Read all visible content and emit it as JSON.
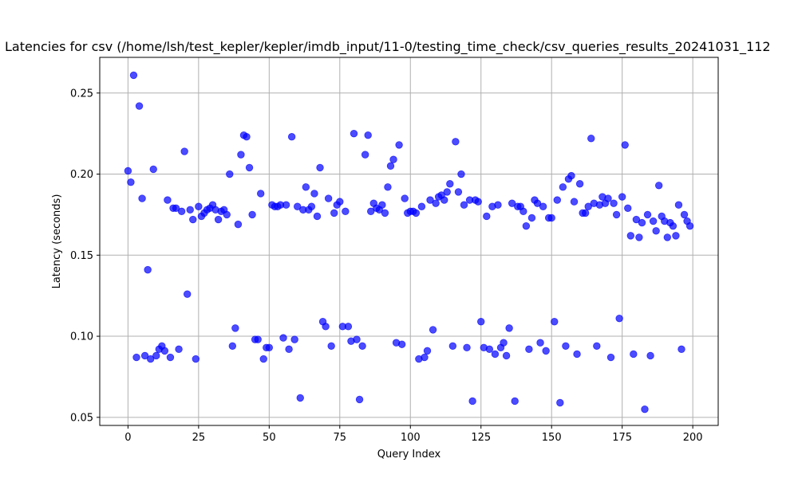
{
  "chart_data": {
    "type": "scatter",
    "title": "Latencies for csv (/home/lsh/test_kepler/kepler/imdb_input/11-0/testing_time_check/csv_queries_results_20241031_112",
    "xlabel": "Query Index",
    "ylabel": "Latency (seconds)",
    "xlim": [
      -10,
      209
    ],
    "ylim": [
      0.045,
      0.272
    ],
    "xticks": [
      0,
      25,
      50,
      75,
      100,
      125,
      150,
      175,
      200
    ],
    "yticks": [
      0.05,
      0.1,
      0.15,
      0.2,
      0.25
    ],
    "xtick_labels": [
      "0",
      "25",
      "50",
      "75",
      "100",
      "125",
      "150",
      "175",
      "200"
    ],
    "ytick_labels": [
      "0.05",
      "0.10",
      "0.15",
      "0.20",
      "0.25"
    ],
    "grid": true,
    "marker_color": "#0000ff",
    "marker_alpha": 0.7,
    "x": [
      0,
      1,
      2,
      3,
      4,
      5,
      6,
      7,
      8,
      9,
      10,
      11,
      12,
      13,
      14,
      15,
      16,
      17,
      18,
      19,
      20,
      21,
      22,
      23,
      24,
      25,
      26,
      27,
      28,
      29,
      30,
      31,
      32,
      33,
      34,
      35,
      36,
      37,
      38,
      39,
      40,
      41,
      42,
      43,
      44,
      45,
      46,
      47,
      48,
      49,
      50,
      51,
      52,
      53,
      54,
      55,
      56,
      57,
      58,
      59,
      60,
      61,
      62,
      63,
      64,
      65,
      66,
      67,
      68,
      69,
      70,
      71,
      72,
      73,
      74,
      75,
      76,
      77,
      78,
      79,
      80,
      81,
      82,
      83,
      84,
      85,
      86,
      87,
      88,
      89,
      90,
      91,
      92,
      93,
      94,
      95,
      96,
      97,
      98,
      99,
      100,
      101,
      102,
      103,
      104,
      105,
      106,
      107,
      108,
      109,
      110,
      111,
      112,
      113,
      114,
      115,
      116,
      117,
      118,
      119,
      120,
      121,
      122,
      123,
      124,
      125,
      126,
      127,
      128,
      129,
      130,
      131,
      132,
      133,
      134,
      135,
      136,
      137,
      138,
      139,
      140,
      141,
      142,
      143,
      144,
      145,
      146,
      147,
      148,
      149,
      150,
      151,
      152,
      153,
      154,
      155,
      156,
      157,
      158,
      159,
      160,
      161,
      162,
      163,
      164,
      165,
      166,
      167,
      168,
      169,
      170,
      171,
      172,
      173,
      174,
      175,
      176,
      177,
      178,
      179,
      180,
      181,
      182,
      183,
      184,
      185,
      186,
      187,
      188,
      189,
      190,
      191,
      192,
      193,
      194,
      195,
      196,
      197,
      198,
      199
    ],
    "y": [
      0.202,
      0.195,
      0.261,
      0.087,
      0.242,
      0.185,
      0.088,
      0.141,
      0.086,
      0.203,
      0.088,
      0.092,
      0.094,
      0.091,
      0.184,
      0.087,
      0.179,
      0.179,
      0.092,
      0.177,
      0.214,
      0.126,
      0.178,
      0.172,
      0.086,
      0.18,
      0.174,
      0.176,
      0.178,
      0.179,
      0.181,
      0.178,
      0.172,
      0.177,
      0.178,
      0.175,
      0.2,
      0.094,
      0.105,
      0.169,
      0.212,
      0.224,
      0.223,
      0.204,
      0.175,
      0.098,
      0.098,
      0.188,
      0.086,
      0.093,
      0.093,
      0.181,
      0.18,
      0.18,
      0.181,
      0.099,
      0.181,
      0.092,
      0.223,
      0.098,
      0.18,
      0.062,
      0.178,
      0.192,
      0.178,
      0.18,
      0.188,
      0.174,
      0.204,
      0.109,
      0.106,
      0.185,
      0.094,
      0.176,
      0.181,
      0.183,
      0.106,
      0.177,
      0.106,
      0.097,
      0.225,
      0.098,
      0.061,
      0.094,
      0.212,
      0.224,
      0.177,
      0.182,
      0.179,
      0.178,
      0.181,
      0.176,
      0.192,
      0.205,
      0.209,
      0.096,
      0.218,
      0.095,
      0.185,
      0.176,
      0.177,
      0.177,
      0.176,
      0.086,
      0.18,
      0.087,
      0.091,
      0.184,
      0.104,
      0.182,
      0.186,
      0.187,
      0.184,
      0.189,
      0.194,
      0.094,
      0.22,
      0.189,
      0.2,
      0.181,
      0.093,
      0.184,
      0.06,
      0.184,
      0.183,
      0.109,
      0.093,
      0.174,
      0.092,
      0.18,
      0.089,
      0.181,
      0.093,
      0.096,
      0.088,
      0.105,
      0.182,
      0.06,
      0.18,
      0.18,
      0.177,
      0.168,
      0.092,
      0.173,
      0.184,
      0.182,
      0.096,
      0.18,
      0.091,
      0.173,
      0.173,
      0.109,
      0.184,
      0.059,
      0.192,
      0.094,
      0.197,
      0.199,
      0.183,
      0.089,
      0.194,
      0.176,
      0.176,
      0.18,
      0.222,
      0.182,
      0.094,
      0.181,
      0.186,
      0.182,
      0.185,
      0.087,
      0.182,
      0.175,
      0.111,
      0.186,
      0.218,
      0.179,
      0.162,
      0.089,
      0.172,
      0.161,
      0.17,
      0.055,
      0.175,
      0.088,
      0.171,
      0.165,
      0.193,
      0.174,
      0.171,
      0.161,
      0.17,
      0.168,
      0.162,
      0.181,
      0.092,
      0.175,
      0.171,
      0.168
    ]
  }
}
